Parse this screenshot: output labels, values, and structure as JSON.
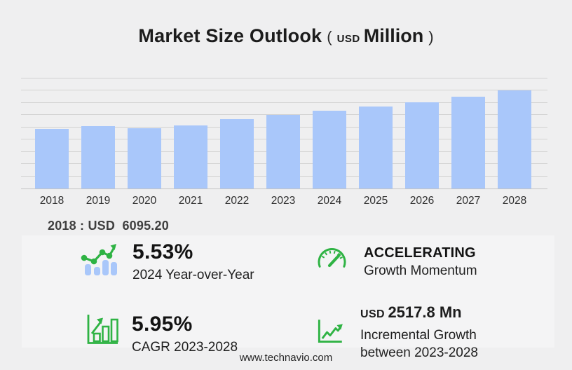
{
  "title": {
    "main": "Market Size Outlook",
    "paren_open": "(",
    "currency": "USD",
    "unit": "Million",
    "paren_close": ")"
  },
  "chart_data": {
    "type": "bar",
    "title": "Market Size Outlook (USD Million)",
    "xlabel": "",
    "ylabel": "USD Million",
    "categories": [
      "2018",
      "2019",
      "2020",
      "2021",
      "2022",
      "2023",
      "2024",
      "2025",
      "2026",
      "2027",
      "2028"
    ],
    "values": [
      6095.2,
      6400,
      6170,
      6470,
      7090,
      7513.4,
      7928.9,
      8380,
      8810,
      9390,
      10031.2
    ],
    "values_note": "2018 labeled on image as USD 6095.20; later years estimated from bar heights, 5.53% 2024 YoY, 5.95% CAGR 2023-2028, USD 2517.8 Mn increment 2023-2028",
    "ylim": [
      0,
      11250
    ],
    "gridline_step": 1250,
    "grid": "horizontal only, no y tick labels",
    "legend": "none",
    "bar_color": "#a9c7fa"
  },
  "annotation": {
    "text": "2018 : USD  6095.20"
  },
  "stats": [
    {
      "icon": "bar-line-growth-icon",
      "value": "5.53%",
      "label": "2024 Year-over-Year"
    },
    {
      "icon": "speedometer-icon",
      "title": "ACCELERATING",
      "label": "Growth Momentum"
    },
    {
      "icon": "bar-chart-growth-icon",
      "value": "5.95%",
      "label": "CAGR 2023-2028"
    },
    {
      "icon": "line-chart-growth-icon",
      "currency": "USD",
      "value": "2517.8 Mn",
      "label_line1": "Incremental Growth",
      "label_line2": "between 2023-2028"
    }
  ],
  "footer": {
    "website": "www.technavio.com"
  },
  "colors": {
    "accent_green": "#2fb344",
    "bar_blue": "#a9c7fa",
    "background": "#efeff0",
    "panel": "#f4f4f5",
    "gridline": "#d2d2d2",
    "text_dark": "#1c1c1c"
  }
}
